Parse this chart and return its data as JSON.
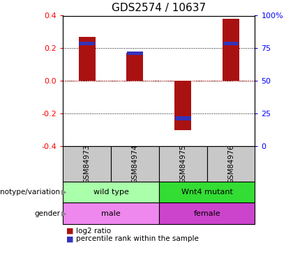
{
  "title": "GDS2574 / 10637",
  "samples": [
    "GSM84973",
    "GSM84974",
    "GSM84975",
    "GSM84976"
  ],
  "log2_ratio": [
    0.27,
    0.17,
    -0.3,
    0.38
  ],
  "percentile_rank": [
    0.24,
    0.18,
    -0.24,
    0.24
  ],
  "ylim": [
    -0.4,
    0.4
  ],
  "y_ticks_left": [
    -0.4,
    -0.2,
    0.0,
    0.2,
    0.4
  ],
  "y_ticks_right_labels": [
    "0",
    "25",
    "50",
    "75",
    "100%"
  ],
  "y_ticks_right_pos": [
    -0.4,
    -0.2,
    0.0,
    0.2,
    0.4
  ],
  "genotype": [
    [
      "wild type",
      2
    ],
    [
      "Wnt4 mutant",
      2
    ]
  ],
  "gender": [
    [
      "male",
      2
    ],
    [
      "female",
      2
    ]
  ],
  "genotype_colors": [
    "#AAFFAA",
    "#33DD33"
  ],
  "gender_colors": [
    "#EE88EE",
    "#CC44CC"
  ],
  "bar_color_red": "#AA1111",
  "bar_color_blue": "#3333BB",
  "zero_line_color": "#CC0000",
  "sample_box_color": "#C8C8C8",
  "bar_width": 0.35,
  "blue_bar_height": 0.022,
  "legend_red": "log2 ratio",
  "legend_blue": "percentile rank within the sample",
  "title_fontsize": 11,
  "axis_fontsize": 8,
  "label_fontsize": 8,
  "sample_fontsize": 7.5,
  "legend_fontsize": 7.5
}
